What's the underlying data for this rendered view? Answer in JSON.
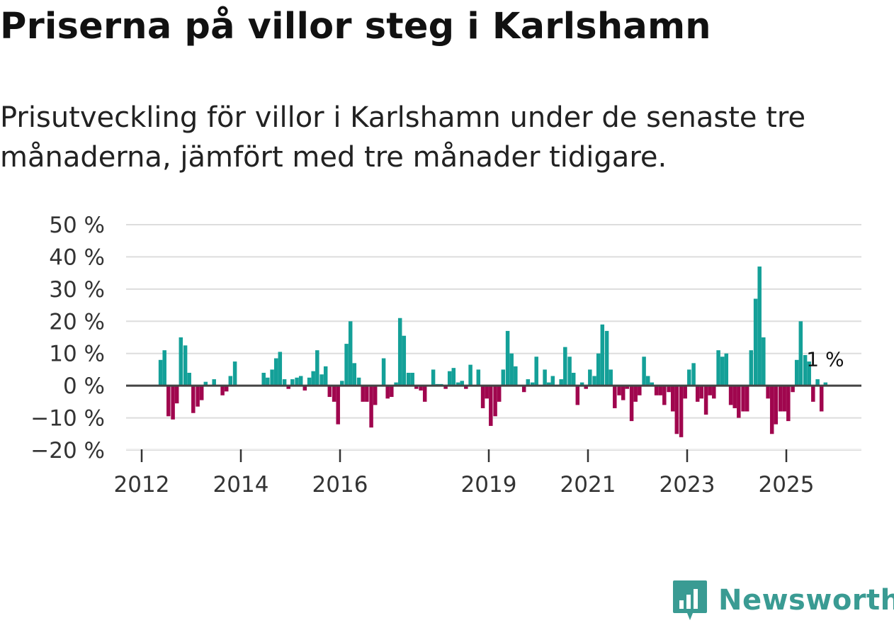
{
  "header": {
    "title": "Priserna på villor steg i Karlshamn",
    "subtitle": "Prisutveckling för villor i Karlshamn under de senaste tre månaderna, jämfört med tre månader tidigare."
  },
  "brand": {
    "name": "Newsworthy"
  },
  "colors": {
    "positive": "#14a098",
    "negative": "#a0064e",
    "zero_line": "#444444",
    "grid": "#dddddd",
    "brand": "#3a9b93"
  },
  "chart_data": {
    "type": "bar",
    "title": "Priserna på villor steg i Karlshamn",
    "xlabel": "",
    "ylabel": "",
    "ylim": [
      -20,
      50
    ],
    "xlim": [
      2011.7,
      2026.5
    ],
    "y_ticks": [
      -20,
      -10,
      0,
      10,
      20,
      30,
      40,
      50
    ],
    "y_tick_labels": [
      "−20 %",
      "−10 %",
      "0 %",
      "10 %",
      "20 %",
      "30 %",
      "40 %",
      "50 %"
    ],
    "x_ticks": [
      2012,
      2014,
      2016,
      2019,
      2021,
      2023,
      2025
    ],
    "x_tick_labels": [
      "2012",
      "2014",
      "2016",
      "2019",
      "2021",
      "2023",
      "2025"
    ],
    "end_label": "1 %",
    "series": [
      {
        "name": "Prisutveckling",
        "points": [
          {
            "x": 2012.38,
            "y": 8
          },
          {
            "x": 2012.46,
            "y": 11
          },
          {
            "x": 2012.54,
            "y": -9.5
          },
          {
            "x": 2012.63,
            "y": -10.5
          },
          {
            "x": 2012.71,
            "y": -5.5
          },
          {
            "x": 2012.79,
            "y": 15
          },
          {
            "x": 2012.88,
            "y": 12.5
          },
          {
            "x": 2012.96,
            "y": 4
          },
          {
            "x": 2013.04,
            "y": -8.5
          },
          {
            "x": 2013.13,
            "y": -6.5
          },
          {
            "x": 2013.21,
            "y": -4.5
          },
          {
            "x": 2013.29,
            "y": 1.2
          },
          {
            "x": 2013.46,
            "y": 2
          },
          {
            "x": 2013.63,
            "y": -3
          },
          {
            "x": 2013.71,
            "y": -1.8
          },
          {
            "x": 2013.79,
            "y": 3
          },
          {
            "x": 2013.88,
            "y": 7.5
          },
          {
            "x": 2014.46,
            "y": 4
          },
          {
            "x": 2014.54,
            "y": 2.5
          },
          {
            "x": 2014.63,
            "y": 5
          },
          {
            "x": 2014.71,
            "y": 8.5
          },
          {
            "x": 2014.79,
            "y": 10.5
          },
          {
            "x": 2014.88,
            "y": 2
          },
          {
            "x": 2014.96,
            "y": -1
          },
          {
            "x": 2015.04,
            "y": 2
          },
          {
            "x": 2015.13,
            "y": 2.5
          },
          {
            "x": 2015.21,
            "y": 3
          },
          {
            "x": 2015.29,
            "y": -1.5
          },
          {
            "x": 2015.38,
            "y": 2.5
          },
          {
            "x": 2015.46,
            "y": 4.5
          },
          {
            "x": 2015.54,
            "y": 11
          },
          {
            "x": 2015.63,
            "y": 3.5
          },
          {
            "x": 2015.71,
            "y": 6
          },
          {
            "x": 2015.79,
            "y": -3.5
          },
          {
            "x": 2015.88,
            "y": -5
          },
          {
            "x": 2015.96,
            "y": -12
          },
          {
            "x": 2016.04,
            "y": 1.5
          },
          {
            "x": 2016.13,
            "y": 13
          },
          {
            "x": 2016.21,
            "y": 20
          },
          {
            "x": 2016.29,
            "y": 7
          },
          {
            "x": 2016.38,
            "y": 2.5
          },
          {
            "x": 2016.46,
            "y": -5
          },
          {
            "x": 2016.54,
            "y": -5
          },
          {
            "x": 2016.63,
            "y": -13
          },
          {
            "x": 2016.71,
            "y": -6
          },
          {
            "x": 2016.88,
            "y": 8.5
          },
          {
            "x": 2016.96,
            "y": -4
          },
          {
            "x": 2017.04,
            "y": -3.5
          },
          {
            "x": 2017.13,
            "y": 1
          },
          {
            "x": 2017.21,
            "y": 21
          },
          {
            "x": 2017.29,
            "y": 15.5
          },
          {
            "x": 2017.38,
            "y": 4
          },
          {
            "x": 2017.46,
            "y": 4
          },
          {
            "x": 2017.54,
            "y": -1
          },
          {
            "x": 2017.63,
            "y": -1.5
          },
          {
            "x": 2017.71,
            "y": -5
          },
          {
            "x": 2017.88,
            "y": 5
          },
          {
            "x": 2017.96,
            "y": 0.5
          },
          {
            "x": 2018.04,
            "y": 0.5
          },
          {
            "x": 2018.13,
            "y": -1
          },
          {
            "x": 2018.21,
            "y": 4.5
          },
          {
            "x": 2018.29,
            "y": 5.5
          },
          {
            "x": 2018.38,
            "y": 1
          },
          {
            "x": 2018.46,
            "y": 1.5
          },
          {
            "x": 2018.54,
            "y": -1
          },
          {
            "x": 2018.63,
            "y": 6.5
          },
          {
            "x": 2018.79,
            "y": 5
          },
          {
            "x": 2018.88,
            "y": -7
          },
          {
            "x": 2018.96,
            "y": -4
          },
          {
            "x": 2019.04,
            "y": -12.5
          },
          {
            "x": 2019.13,
            "y": -9.5
          },
          {
            "x": 2019.21,
            "y": -5
          },
          {
            "x": 2019.29,
            "y": 5
          },
          {
            "x": 2019.38,
            "y": 17
          },
          {
            "x": 2019.46,
            "y": 10
          },
          {
            "x": 2019.54,
            "y": 6
          },
          {
            "x": 2019.71,
            "y": -2
          },
          {
            "x": 2019.79,
            "y": 2
          },
          {
            "x": 2019.88,
            "y": 1
          },
          {
            "x": 2019.96,
            "y": 9
          },
          {
            "x": 2020.13,
            "y": 5
          },
          {
            "x": 2020.21,
            "y": 1
          },
          {
            "x": 2020.29,
            "y": 3
          },
          {
            "x": 2020.46,
            "y": 2
          },
          {
            "x": 2020.54,
            "y": 12
          },
          {
            "x": 2020.63,
            "y": 9
          },
          {
            "x": 2020.71,
            "y": 4
          },
          {
            "x": 2020.79,
            "y": -6
          },
          {
            "x": 2020.88,
            "y": 1
          },
          {
            "x": 2020.96,
            "y": -1
          },
          {
            "x": 2021.04,
            "y": 5
          },
          {
            "x": 2021.13,
            "y": 3
          },
          {
            "x": 2021.21,
            "y": 10
          },
          {
            "x": 2021.29,
            "y": 19
          },
          {
            "x": 2021.38,
            "y": 17
          },
          {
            "x": 2021.46,
            "y": 5
          },
          {
            "x": 2021.54,
            "y": -7
          },
          {
            "x": 2021.63,
            "y": -3
          },
          {
            "x": 2021.71,
            "y": -4.5
          },
          {
            "x": 2021.79,
            "y": -1
          },
          {
            "x": 2021.88,
            "y": -11
          },
          {
            "x": 2021.96,
            "y": -5
          },
          {
            "x": 2022.04,
            "y": -3
          },
          {
            "x": 2022.13,
            "y": 9
          },
          {
            "x": 2022.21,
            "y": 3
          },
          {
            "x": 2022.29,
            "y": 1
          },
          {
            "x": 2022.38,
            "y": -3
          },
          {
            "x": 2022.46,
            "y": -3
          },
          {
            "x": 2022.54,
            "y": -6
          },
          {
            "x": 2022.63,
            "y": -2
          },
          {
            "x": 2022.71,
            "y": -8
          },
          {
            "x": 2022.79,
            "y": -15
          },
          {
            "x": 2022.88,
            "y": -16
          },
          {
            "x": 2022.96,
            "y": -4
          },
          {
            "x": 2023.04,
            "y": 5
          },
          {
            "x": 2023.13,
            "y": 7
          },
          {
            "x": 2023.21,
            "y": -5
          },
          {
            "x": 2023.29,
            "y": -4
          },
          {
            "x": 2023.38,
            "y": -9
          },
          {
            "x": 2023.46,
            "y": -3
          },
          {
            "x": 2023.54,
            "y": -4
          },
          {
            "x": 2023.63,
            "y": 11
          },
          {
            "x": 2023.71,
            "y": 9
          },
          {
            "x": 2023.79,
            "y": 10
          },
          {
            "x": 2023.88,
            "y": -6
          },
          {
            "x": 2023.96,
            "y": -7
          },
          {
            "x": 2024.04,
            "y": -10
          },
          {
            "x": 2024.13,
            "y": -8
          },
          {
            "x": 2024.21,
            "y": -8
          },
          {
            "x": 2024.29,
            "y": 11
          },
          {
            "x": 2024.38,
            "y": 27
          },
          {
            "x": 2024.46,
            "y": 37
          },
          {
            "x": 2024.54,
            "y": 15
          },
          {
            "x": 2024.63,
            "y": -4
          },
          {
            "x": 2024.71,
            "y": -15
          },
          {
            "x": 2024.79,
            "y": -12
          },
          {
            "x": 2024.88,
            "y": -8
          },
          {
            "x": 2024.96,
            "y": -8
          },
          {
            "x": 2025.04,
            "y": -11
          },
          {
            "x": 2025.13,
            "y": -2
          },
          {
            "x": 2025.21,
            "y": 8
          },
          {
            "x": 2025.29,
            "y": 20
          },
          {
            "x": 2025.38,
            "y": 9.5
          },
          {
            "x": 2025.46,
            "y": 7.5
          },
          {
            "x": 2025.54,
            "y": -5
          },
          {
            "x": 2025.63,
            "y": 2
          },
          {
            "x": 2025.71,
            "y": -8
          },
          {
            "x": 2025.79,
            "y": 1
          }
        ]
      }
    ]
  }
}
